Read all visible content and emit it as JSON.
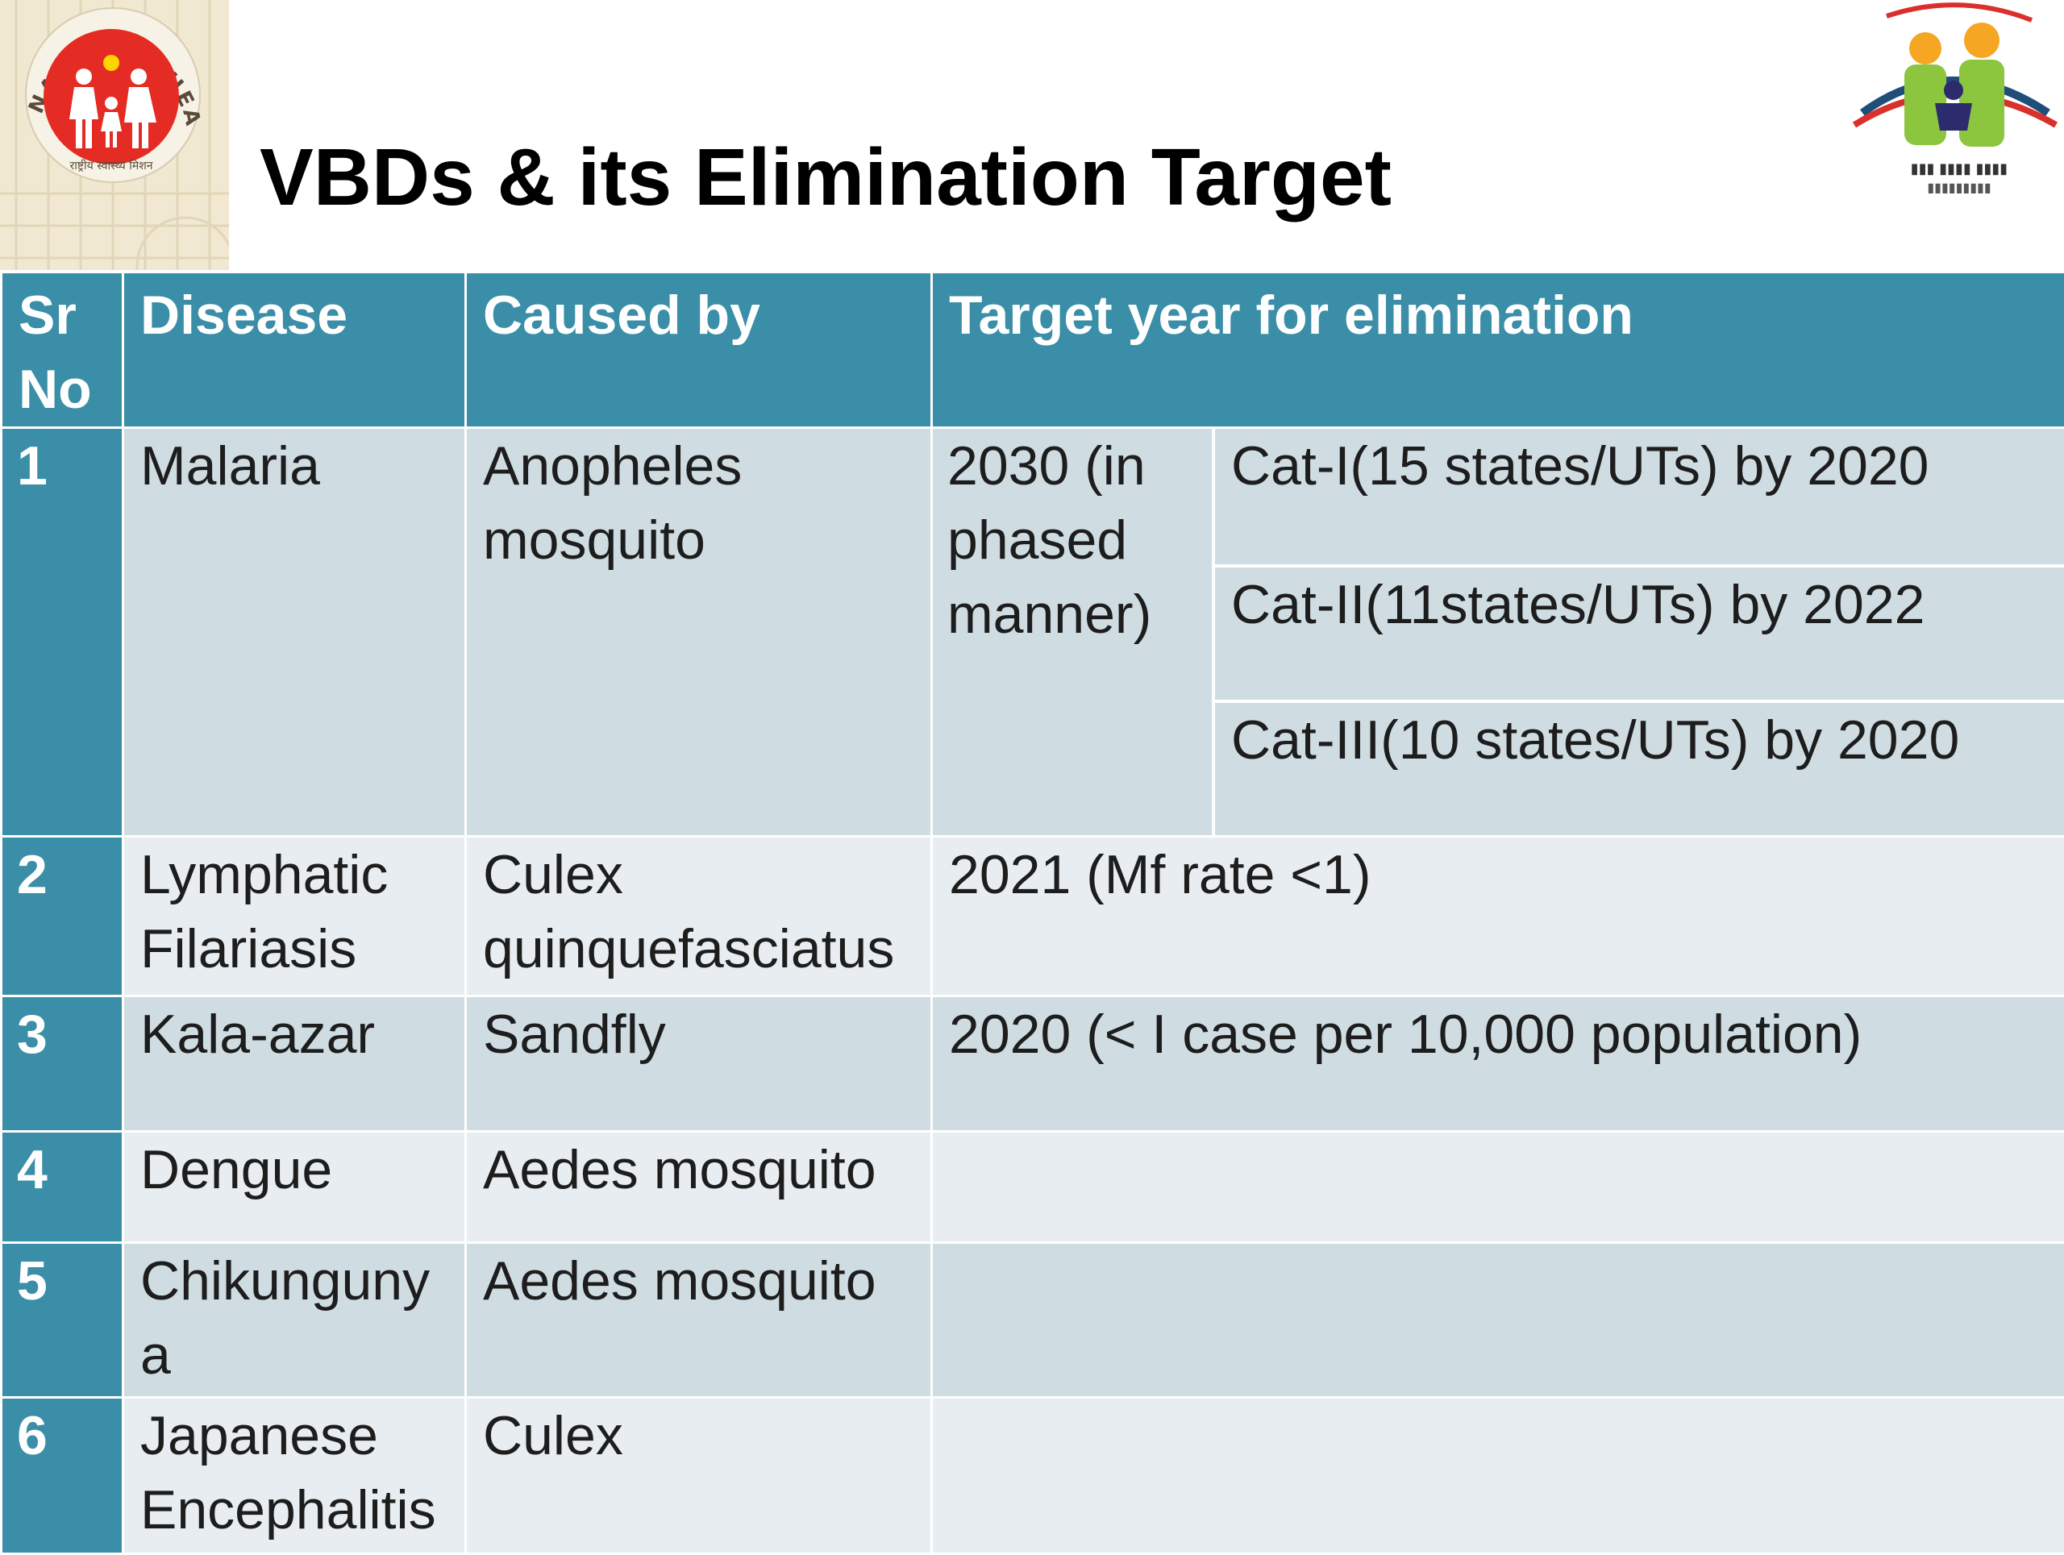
{
  "title": "VBDs & its Elimination Target",
  "logos": {
    "left": {
      "name": "NATIONAL HEALTH MISSION",
      "seal_text": "राष्ट्रीय स्वास्थ्य मिशन",
      "icon": "family-logo"
    },
    "right": {
      "icon": "ministry-family-logo"
    }
  },
  "colors": {
    "header": "#3b8ea7",
    "row_dark": "#cfdde3",
    "row_light": "#e7edf1"
  },
  "table": {
    "headers": {
      "sr": "Sr No",
      "disease": "Disease",
      "caused_by": "Caused by",
      "target": "Target year for elimination"
    },
    "rows": [
      {
        "sr": "1",
        "disease": "Malaria",
        "caused_by": "Anopheles mosquito",
        "target": "2030 (in phased manner)",
        "categories": [
          "Cat-I(15 states/UTs) by 2020",
          "Cat-II(11states/UTs) by 2022",
          "Cat-III(10 states/UTs) by 2020"
        ]
      },
      {
        "sr": "2",
        "disease": "Lymphatic Filariasis",
        "caused_by": "Culex quinquefasciatus",
        "target": "2021 (Mf rate <1)"
      },
      {
        "sr": "3",
        "disease": "Kala-azar",
        "caused_by": "Sandfly",
        "target": "2020 (< I case per 10,000 population)"
      },
      {
        "sr": "4",
        "disease": "Dengue",
        "caused_by": "Aedes mosquito",
        "target": ""
      },
      {
        "sr": "5",
        "disease": "Chikunguny a",
        "caused_by": "Aedes mosquito",
        "target": ""
      },
      {
        "sr": "6",
        "disease": "Japanese Encephalitis",
        "caused_by": "Culex",
        "target": ""
      }
    ]
  }
}
